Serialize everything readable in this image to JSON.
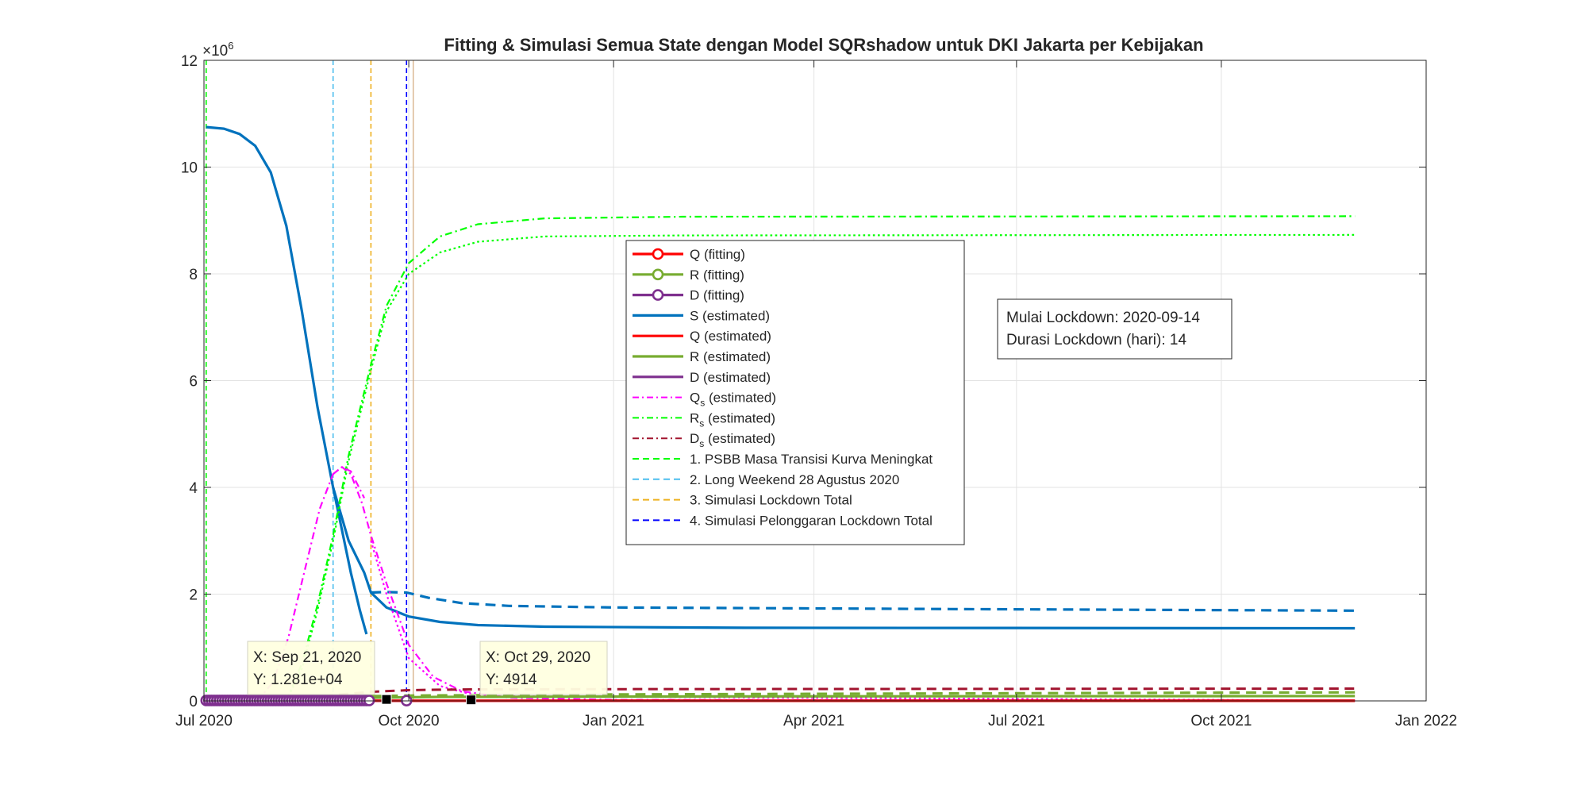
{
  "colors": {
    "S": "#0072BD",
    "Q": "#FF0000",
    "R": "#77AC30",
    "D": "#7E2F8E",
    "Qs": "#FF00FF",
    "Rs": "#00FF00",
    "Ds": "#A2142F",
    "policy1": "#00FF00",
    "policy2": "#4DBEEE",
    "policy3": "#EDB120",
    "policy4": "#0000FF"
  },
  "chart_data": {
    "type": "line",
    "title": "Fitting & Simulasi Semua State dengan Model SQRshadow untuk DKI Jakarta per Kebijakan",
    "xlabel": "",
    "ylabel": "",
    "exponent_label": "×10",
    "exponent_power": "6",
    "xlim": [
      "2020-07-01",
      "2022-01-01"
    ],
    "ylim": [
      0,
      12000000
    ],
    "x_ticks": [
      {
        "date": "2020-07-01",
        "label": "Jul 2020"
      },
      {
        "date": "2020-10-01",
        "label": "Oct 2020"
      },
      {
        "date": "2021-01-01",
        "label": "Jan 2021"
      },
      {
        "date": "2021-04-01",
        "label": "Apr 2021"
      },
      {
        "date": "2021-07-01",
        "label": "Jul 2021"
      },
      {
        "date": "2021-10-01",
        "label": "Oct 2021"
      },
      {
        "date": "2022-01-01",
        "label": "Jan 2022"
      }
    ],
    "y_ticks": [
      {
        "value": 0,
        "label": "0"
      },
      {
        "value": 2000000,
        "label": "2"
      },
      {
        "value": 4000000,
        "label": "4"
      },
      {
        "value": 6000000,
        "label": "6"
      },
      {
        "value": 8000000,
        "label": "8"
      },
      {
        "value": 10000000,
        "label": "10"
      },
      {
        "value": 12000000,
        "label": "12"
      }
    ],
    "grid": true,
    "policy_lines": [
      {
        "date": "2020-07-02",
        "label": "1. PSBB Masa Transisi Kurva Meningkat",
        "color_key": "policy1"
      },
      {
        "date": "2020-08-28",
        "label": "2. Long Weekend 28 Agustus 2020",
        "color_key": "policy2"
      },
      {
        "date": "2020-09-14",
        "label": "3. Simulasi Lockdown Total",
        "color_key": "policy3"
      },
      {
        "date": "2020-09-30",
        "label": "4. Simulasi Pelonggaran Lockdown Total",
        "color_key": "policy4"
      }
    ],
    "extra_vlines": [
      {
        "date": "2020-10-03",
        "color": "#D9B38C"
      }
    ],
    "series": [
      {
        "name": "S (estimated)",
        "color_key": "S",
        "style": "solid",
        "width": 3.2,
        "points": [
          [
            "2020-07-02",
            10750000
          ],
          [
            "2020-07-10",
            10720000
          ],
          [
            "2020-07-17",
            10620000
          ],
          [
            "2020-07-24",
            10400000
          ],
          [
            "2020-07-31",
            9900000
          ],
          [
            "2020-08-07",
            8900000
          ],
          [
            "2020-08-14",
            7300000
          ],
          [
            "2020-08-21",
            5500000
          ],
          [
            "2020-08-28",
            4000000
          ],
          [
            "2020-09-04",
            3000000
          ],
          [
            "2020-09-11",
            2400000
          ],
          [
            "2020-09-14",
            2030000
          ],
          [
            "2020-09-21",
            1750000
          ],
          [
            "2020-10-01",
            1580000
          ],
          [
            "2020-10-15",
            1480000
          ],
          [
            "2020-11-01",
            1420000
          ],
          [
            "2020-12-01",
            1390000
          ],
          [
            "2021-03-01",
            1370000
          ],
          [
            "2021-11-30",
            1360000
          ]
        ]
      },
      {
        "name": "S (estimated)",
        "color_key": "S",
        "style": "solid",
        "width": 3.2,
        "points": [
          [
            "2020-08-28",
            4000000
          ],
          [
            "2020-09-01",
            3200000
          ],
          [
            "2020-09-05",
            2400000
          ],
          [
            "2020-09-09",
            1700000
          ],
          [
            "2020-09-12",
            1250000
          ]
        ]
      },
      {
        "name": "S (estimated)",
        "color_key": "S",
        "style": "dash",
        "width": 3.2,
        "points": [
          [
            "2020-09-14",
            2030000
          ],
          [
            "2020-09-20",
            2040000
          ],
          [
            "2020-09-30",
            2030000
          ],
          [
            "2020-10-10",
            1930000
          ],
          [
            "2020-10-25",
            1830000
          ],
          [
            "2020-11-15",
            1780000
          ],
          [
            "2021-01-01",
            1750000
          ],
          [
            "2021-06-01",
            1720000
          ],
          [
            "2021-11-30",
            1690000
          ]
        ]
      },
      {
        "name": "Rs (estimated)",
        "color_key": "Rs",
        "style": "dashdot",
        "width": 2.2,
        "points": [
          [
            "2020-08-07",
            0
          ],
          [
            "2020-08-14",
            700000
          ],
          [
            "2020-08-21",
            1800000
          ],
          [
            "2020-08-28",
            3100000
          ],
          [
            "2020-09-04",
            4600000
          ],
          [
            "2020-09-14",
            6300000
          ],
          [
            "2020-09-21",
            7400000
          ],
          [
            "2020-10-01",
            8200000
          ],
          [
            "2020-10-15",
            8700000
          ],
          [
            "2020-11-01",
            8930000
          ],
          [
            "2020-12-01",
            9040000
          ],
          [
            "2021-02-01",
            9070000
          ],
          [
            "2021-11-30",
            9080000
          ]
        ]
      },
      {
        "name": "Rs (estimated)",
        "color_key": "Rs",
        "style": "dot",
        "width": 2.2,
        "points": [
          [
            "2020-08-07",
            0
          ],
          [
            "2020-08-14",
            600000
          ],
          [
            "2020-08-21",
            1700000
          ],
          [
            "2020-08-28",
            3000000
          ],
          [
            "2020-09-04",
            4500000
          ],
          [
            "2020-09-14",
            6200000
          ],
          [
            "2020-09-21",
            7300000
          ],
          [
            "2020-10-01",
            8000000
          ],
          [
            "2020-10-15",
            8400000
          ],
          [
            "2020-11-01",
            8600000
          ],
          [
            "2020-12-01",
            8700000
          ],
          [
            "2021-02-01",
            8720000
          ],
          [
            "2021-11-30",
            8730000
          ]
        ]
      },
      {
        "name": "Qs (estimated)",
        "color_key": "Qs",
        "style": "dashdot",
        "width": 2.2,
        "points": [
          [
            "2020-07-25",
            0
          ],
          [
            "2020-08-01",
            350000
          ],
          [
            "2020-08-08",
            1200000
          ],
          [
            "2020-08-15",
            2400000
          ],
          [
            "2020-08-22",
            3600000
          ],
          [
            "2020-08-28",
            4250000
          ],
          [
            "2020-09-01",
            4380000
          ],
          [
            "2020-09-05",
            4250000
          ],
          [
            "2020-09-10",
            3700000
          ],
          [
            "2020-09-14",
            3100000
          ],
          [
            "2020-09-21",
            2200000
          ],
          [
            "2020-10-01",
            1050000
          ],
          [
            "2020-10-12",
            450000
          ],
          [
            "2020-10-25",
            180000
          ],
          [
            "2020-11-15",
            60000
          ],
          [
            "2021-01-01",
            20000
          ],
          [
            "2021-11-30",
            5000
          ]
        ]
      },
      {
        "name": "Qs (estimated)",
        "color_key": "Qs",
        "style": "dashdot",
        "width": 2.2,
        "points": [
          [
            "2020-08-28",
            4250000
          ],
          [
            "2020-09-01",
            4380000
          ],
          [
            "2020-09-05",
            4300000
          ],
          [
            "2020-09-08",
            4050000
          ],
          [
            "2020-09-11",
            3800000
          ]
        ]
      },
      {
        "name": "Qs (estimated)",
        "color_key": "Qs",
        "style": "dot",
        "width": 2.2,
        "points": [
          [
            "2020-09-14",
            3000000
          ],
          [
            "2020-09-21",
            2000000
          ],
          [
            "2020-10-01",
            800000
          ],
          [
            "2020-10-15",
            280000
          ],
          [
            "2020-11-01",
            90000
          ],
          [
            "2021-11-30",
            4000
          ]
        ]
      },
      {
        "name": "Ds (estimated)",
        "color_key": "Ds",
        "style": "dash",
        "width": 3,
        "points": [
          [
            "2020-07-20",
            0
          ],
          [
            "2020-08-15",
            50000
          ],
          [
            "2020-09-01",
            120000
          ],
          [
            "2020-09-14",
            170000
          ],
          [
            "2020-10-01",
            200000
          ],
          [
            "2020-10-15",
            210000
          ],
          [
            "2020-11-01",
            215000
          ],
          [
            "2021-01-01",
            220000
          ],
          [
            "2021-11-30",
            230000
          ]
        ]
      },
      {
        "name": "R (estimated)",
        "color_key": "R",
        "style": "dash",
        "width": 3.2,
        "points": [
          [
            "2020-07-02",
            0
          ],
          [
            "2020-08-01",
            40000
          ],
          [
            "2020-09-01",
            80000
          ],
          [
            "2020-10-01",
            100000
          ],
          [
            "2021-01-01",
            120000
          ],
          [
            "2021-06-01",
            140000
          ],
          [
            "2021-11-30",
            160000
          ]
        ]
      },
      {
        "name": "R (estimated)",
        "color_key": "R",
        "style": "solid",
        "width": 3.2,
        "points": [
          [
            "2020-07-02",
            0
          ],
          [
            "2020-08-01",
            30000
          ],
          [
            "2020-09-14",
            60000
          ],
          [
            "2020-10-15",
            75000
          ],
          [
            "2021-03-01",
            85000
          ],
          [
            "2021-11-30",
            90000
          ]
        ]
      },
      {
        "name": "D (estimated)",
        "color_key": "D",
        "style": "solid",
        "width": 3.2,
        "points": [
          [
            "2020-07-02",
            0
          ],
          [
            "2020-09-01",
            2000
          ],
          [
            "2020-11-01",
            3500
          ],
          [
            "2021-11-30",
            4500
          ]
        ]
      },
      {
        "name": "Q (estimated)",
        "color_key": "Q",
        "style": "solid",
        "width": 3.2,
        "points": [
          [
            "2020-07-02",
            0
          ],
          [
            "2020-09-01",
            5000
          ],
          [
            "2020-10-01",
            3000
          ],
          [
            "2021-11-30",
            1000
          ]
        ]
      }
    ],
    "fitting_markers": [
      {
        "name": "D (fitting)",
        "color_key": "D",
        "dates_from": "2020-07-02",
        "dates_to": "2020-09-14",
        "step_days": 1.2,
        "y": 8000
      },
      {
        "name": "D (fitting)",
        "color_key": "D",
        "dates_from": "2020-09-30",
        "dates_to": "2020-09-30",
        "step_days": 1,
        "y": 5000
      }
    ],
    "datatips": [
      {
        "date": "2020-09-21",
        "y": 12810,
        "x_text": "X: Sep 21, 2020",
        "y_text": "Y: 1.281e+04"
      },
      {
        "date": "2020-10-29",
        "y": 4914,
        "x_text": "X: Oct 29, 2020",
        "y_text": "Y: 4914"
      }
    ],
    "legend": {
      "placement": "center",
      "entries": [
        {
          "label": "Q (fitting)",
          "color_key": "Q",
          "style": "solid",
          "marker": "circle"
        },
        {
          "label": "R (fitting)",
          "color_key": "R",
          "style": "solid",
          "marker": "circle"
        },
        {
          "label": "D (fitting)",
          "color_key": "D",
          "style": "solid",
          "marker": "circle"
        },
        {
          "label": "S (estimated)",
          "color_key": "S",
          "style": "solid",
          "marker": "none"
        },
        {
          "label": "Q (estimated)",
          "color_key": "Q",
          "style": "solid",
          "marker": "none"
        },
        {
          "label": "R (estimated)",
          "color_key": "R",
          "style": "solid",
          "marker": "none"
        },
        {
          "label": "D (estimated)",
          "color_key": "D",
          "style": "solid",
          "marker": "none"
        },
        {
          "label": "Q",
          "sub": "s",
          "suffix": " (estimated)",
          "color_key": "Qs",
          "style": "dashdot",
          "marker": "none"
        },
        {
          "label": "R",
          "sub": "s",
          "suffix": " (estimated)",
          "color_key": "Rs",
          "style": "dashdot",
          "marker": "none"
        },
        {
          "label": "D",
          "sub": "s",
          "suffix": " (estimated)",
          "color_key": "Ds",
          "style": "dashdot",
          "marker": "none"
        },
        {
          "label": "1. PSBB Masa Transisi Kurva Meningkat",
          "color_key": "policy1",
          "style": "dash",
          "marker": "none"
        },
        {
          "label": "2. Long Weekend 28 Agustus 2020",
          "color_key": "policy2",
          "style": "dash",
          "marker": "none"
        },
        {
          "label": "3. Simulasi Lockdown Total",
          "color_key": "policy3",
          "style": "dash",
          "marker": "none"
        },
        {
          "label": "4. Simulasi Pelonggaran Lockdown Total",
          "color_key": "policy4",
          "style": "dash",
          "marker": "none"
        }
      ]
    },
    "annotation": {
      "line1": "Mulai Lockdown: 2020-09-14",
      "line2": "Durasi Lockdown (hari): 14"
    }
  }
}
